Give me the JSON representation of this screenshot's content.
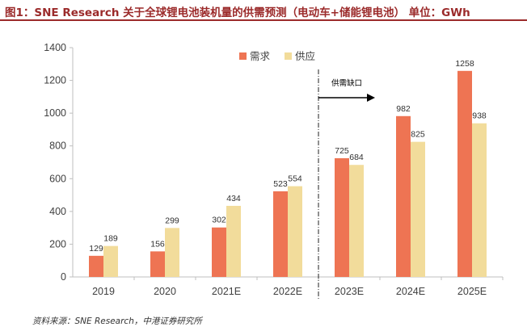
{
  "header": {
    "title": "图1：SNE Research 关于全球锂电池装机量的供需预测（电动车+储能锂电池）  单位：GWh"
  },
  "source": "资料来源：SNE Research，中港证券研究所",
  "colors": {
    "demand": "#ee7453",
    "supply": "#f2dc9b",
    "title": "#9b2a2a"
  },
  "chart_data": {
    "type": "bar",
    "categories": [
      "2019",
      "2020",
      "2021E",
      "2022E",
      "2023E",
      "2024E",
      "2025E"
    ],
    "series": [
      {
        "name": "需求",
        "values": [
          129,
          156,
          302,
          523,
          725,
          982,
          1258
        ]
      },
      {
        "name": "供应",
        "values": [
          189,
          299,
          434,
          554,
          684,
          825,
          938
        ]
      }
    ],
    "ylim": [
      0,
      1400
    ],
    "yticks": [
      0,
      200,
      400,
      600,
      800,
      1000,
      1200,
      1400
    ],
    "legend": "top-center",
    "annotation": "供需缺口",
    "grid": false
  }
}
